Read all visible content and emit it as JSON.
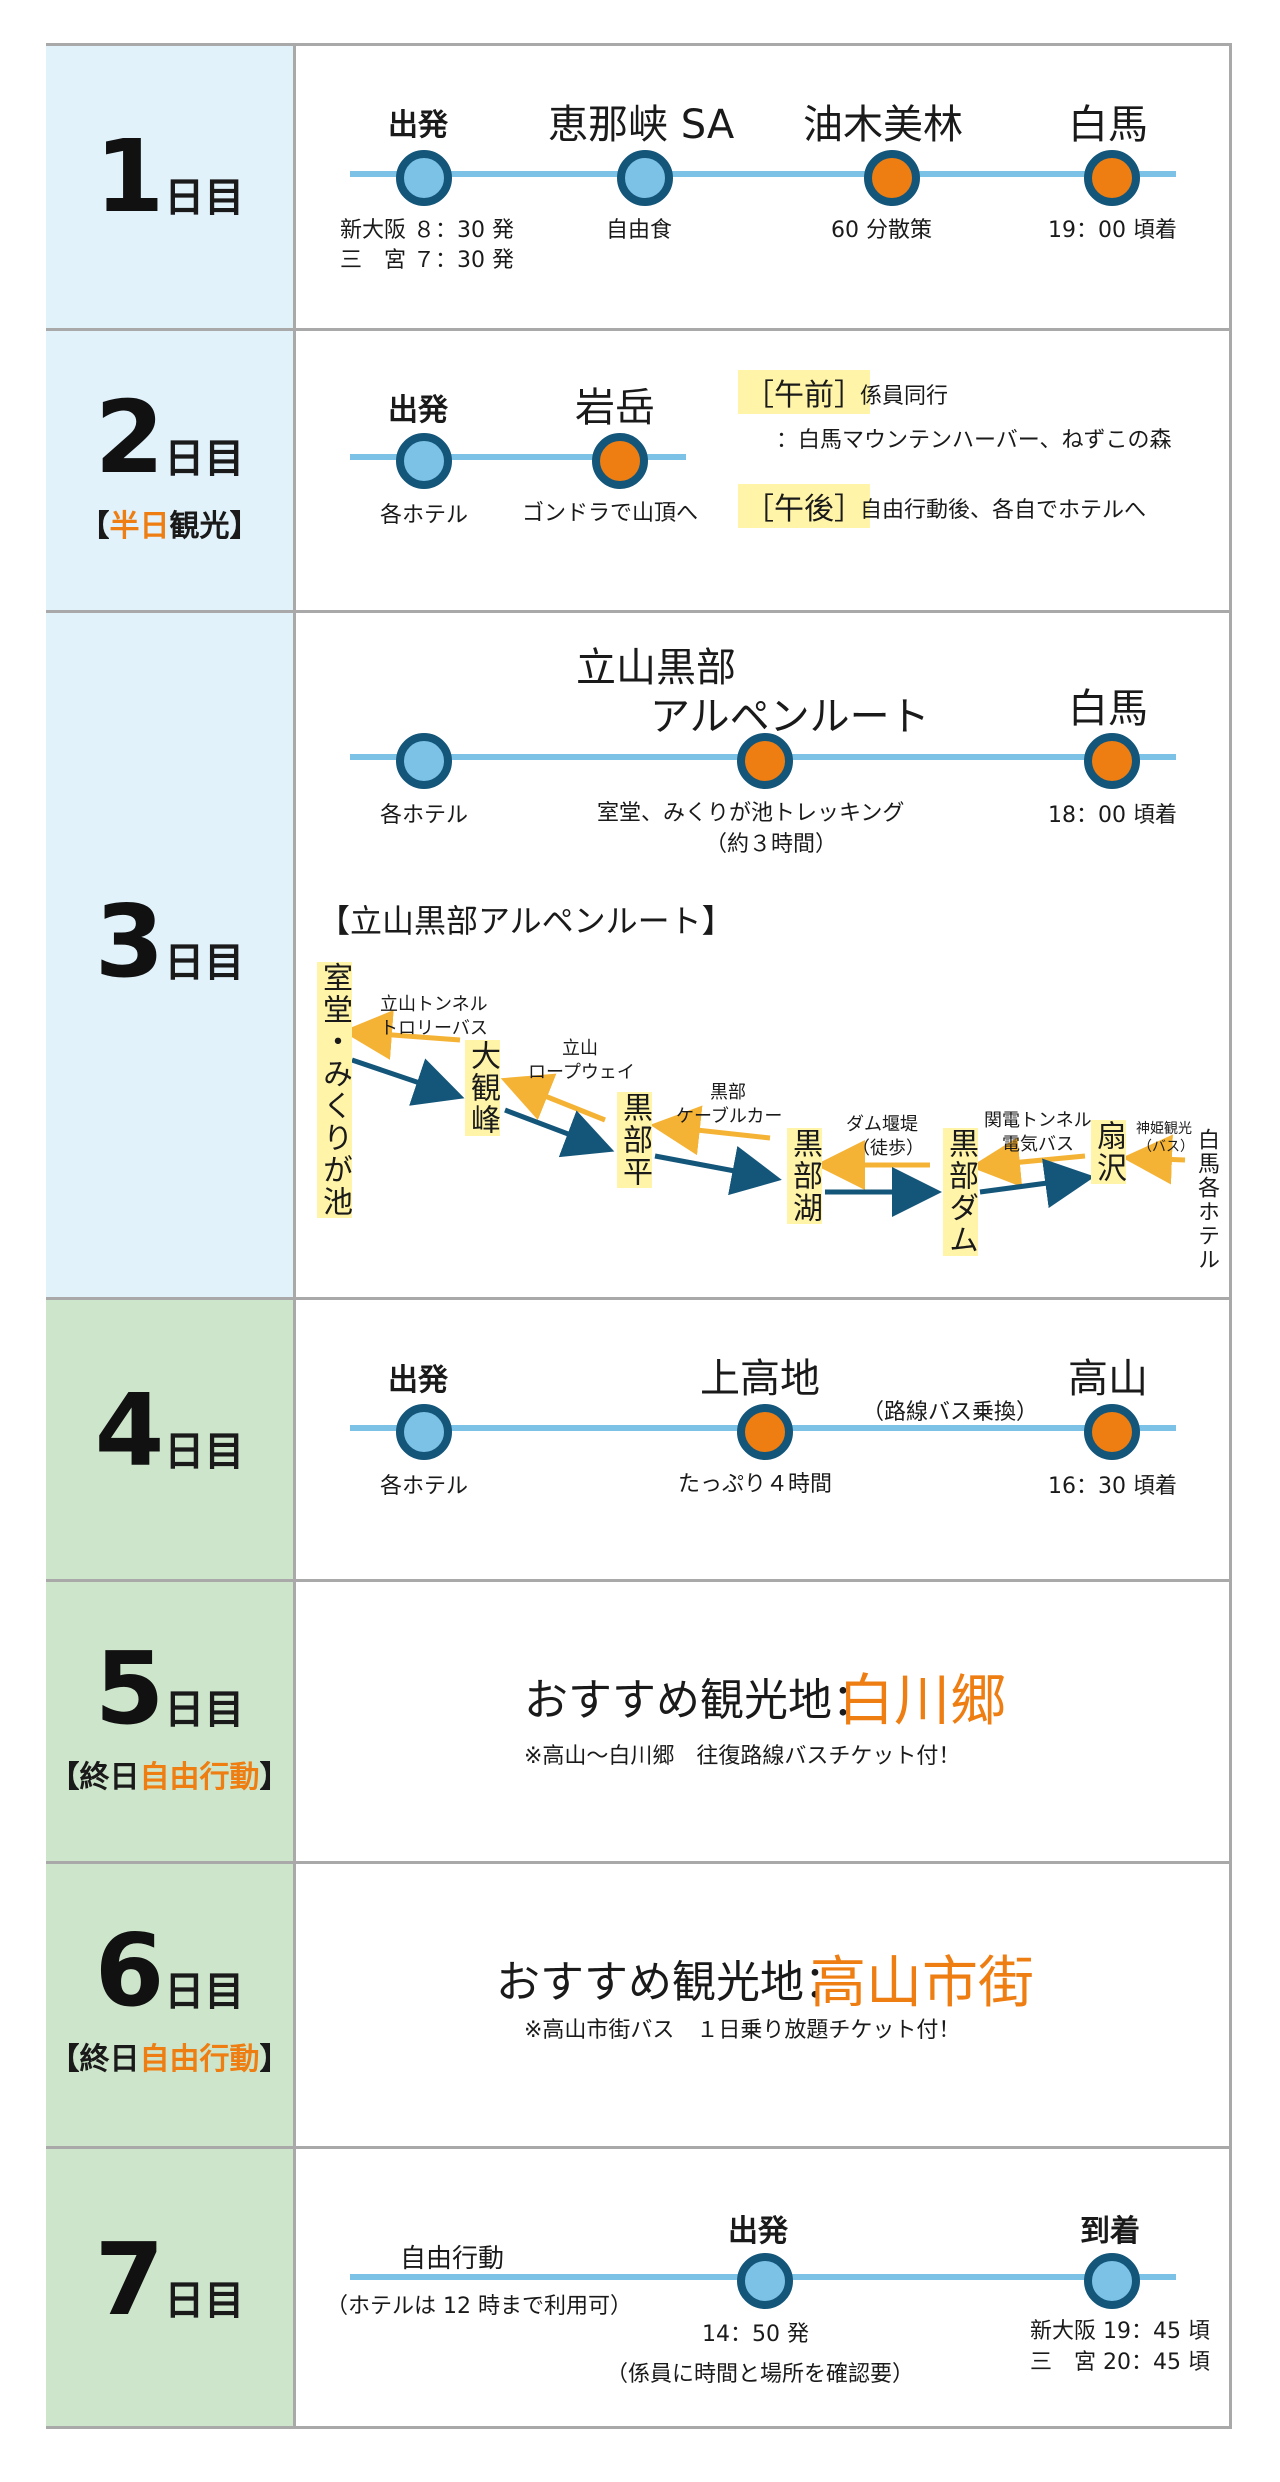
{
  "colors": {
    "accent": "#ee7d12",
    "line": "#7cc1e6",
    "dot_border": "#14567a",
    "highlight": "#fff4a8",
    "day_blue": "#e1f2fb",
    "day_green": "#cde6cb"
  },
  "days": [
    {
      "num": "1",
      "unit": "日目",
      "sub": "",
      "sub_hl": ""
    },
    {
      "num": "2",
      "unit": "日目",
      "sub_pre": "【",
      "sub_hl": "半日",
      "sub_post": "観光】"
    },
    {
      "num": "3",
      "unit": "日目"
    },
    {
      "num": "4",
      "unit": "日目"
    },
    {
      "num": "5",
      "unit": "日目",
      "sub_pre": "【終日",
      "sub_hl": "自由行動",
      "sub_post": "】"
    },
    {
      "num": "6",
      "unit": "日目",
      "sub_pre": "【終日",
      "sub_hl": "自由行動",
      "sub_post": "】"
    },
    {
      "num": "7",
      "unit": "日目"
    }
  ],
  "day1": {
    "stops": [
      "出発",
      "恵那峡 SA",
      "油木美林",
      "白馬"
    ],
    "notes": [
      "新大阪 ８：30 発",
      "三　宮 ７：30 発",
      "自由食",
      "60 分散策",
      "19：00 頃着"
    ]
  },
  "day2": {
    "stops": [
      "出発",
      "岩岳"
    ],
    "notes": [
      "各ホテル",
      "ゴンドラで山頂へ"
    ],
    "am_tag": "［午前］",
    "am_text": "係員同行",
    "am_text2": "：白馬マウンテンハーバー、ねずこの森",
    "pm_tag": "［午後］",
    "pm_text": "自由行動後、各自でホテルへ"
  },
  "day3": {
    "stop_mid1": "立山黒部",
    "stop_mid2": "アルペンルート",
    "stop_end": "白馬",
    "notes": [
      "各ホテル",
      "室堂、みくりが池トレッキング",
      "（約３時間）",
      "18：00 頃着"
    ],
    "route_title": "【立山黒部アルペンルート】",
    "stations": [
      "室堂・みくりが池",
      "大観峰",
      "黒部平",
      "黒部湖",
      "黒部ダム",
      "扇沢",
      "白馬各ホテル"
    ],
    "transport": [
      "立山トンネル",
      "トロリーバス",
      "立山",
      "ロープウェイ",
      "黒部",
      "ケーブルカー",
      "ダム堰堤",
      "（徒歩）",
      "関電トンネル",
      "電気バス",
      "神姫観光",
      "（バス）"
    ]
  },
  "day4": {
    "stops": [
      "出発",
      "上高地",
      "高山"
    ],
    "notes": [
      "各ホテル",
      "たっぷり４時間",
      "（路線バス乗換）",
      "16：30 頃着"
    ]
  },
  "day5": {
    "title": "おすすめ観光地：",
    "place": "白川郷",
    "note": "※高山〜白川郷　往復路線バスチケット付！"
  },
  "day6": {
    "title": "おすすめ観光地：",
    "place": "高山市街",
    "note": "※高山市街バス　１日乗り放題チケット付！"
  },
  "day7": {
    "free": "自由行動",
    "free_note": "（ホテルは 12 時まで利用可）",
    "stops": [
      "出発",
      "到着"
    ],
    "notes": [
      "14：50 発",
      "（係員に時間と場所を確認要）",
      "新大阪 19：45 頃",
      "三　宮 20：45 頃"
    ]
  }
}
